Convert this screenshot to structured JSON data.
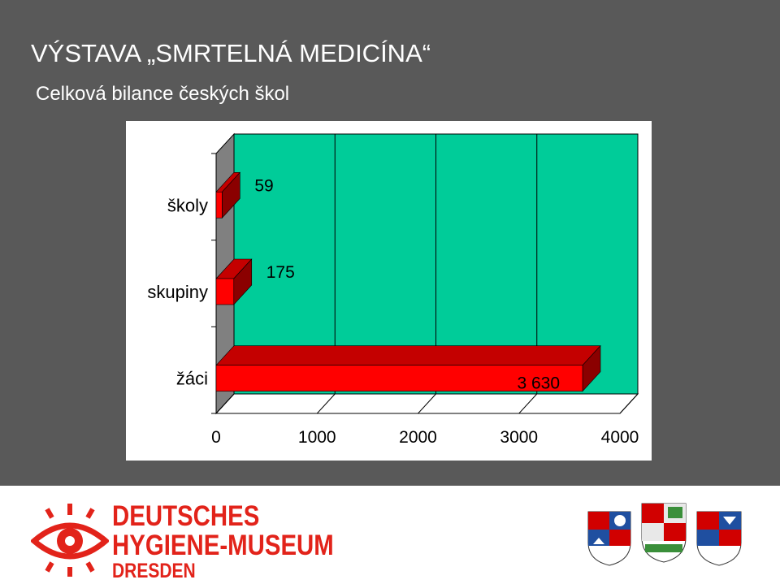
{
  "slide": {
    "title": "VÝSTAVA „SMRTELNÁ MEDICÍNA“",
    "subtitle": "Celková bilance českých škol"
  },
  "chart_data": {
    "type": "bar",
    "orientation": "horizontal",
    "style": "3d",
    "title": "",
    "xlabel": "",
    "ylabel": "",
    "categories": [
      "školy",
      "skupiny",
      "žáci"
    ],
    "values": [
      59,
      175,
      3630
    ],
    "value_labels": [
      "59",
      "175",
      "3 630"
    ],
    "xlim": [
      0,
      4000
    ],
    "x_ticks": [
      "0",
      "1000",
      "2000",
      "3000",
      "4000"
    ],
    "grid": true,
    "colors": {
      "bar": "#ff0000",
      "bar_top": "#c40000",
      "bar_side": "#8b0000",
      "wall": "#00cc99",
      "side_wall": "#808080"
    }
  },
  "footer": {
    "logo_line1": "DEUTSCHES",
    "logo_line2": "HYGIENE-MUSEUM",
    "logo_line3": "DRESDEN",
    "logo_color": "#e2231a",
    "crest_icons": [
      "coat-of-arms-icon",
      "coat-of-arms-icon",
      "coat-of-arms-icon"
    ]
  }
}
